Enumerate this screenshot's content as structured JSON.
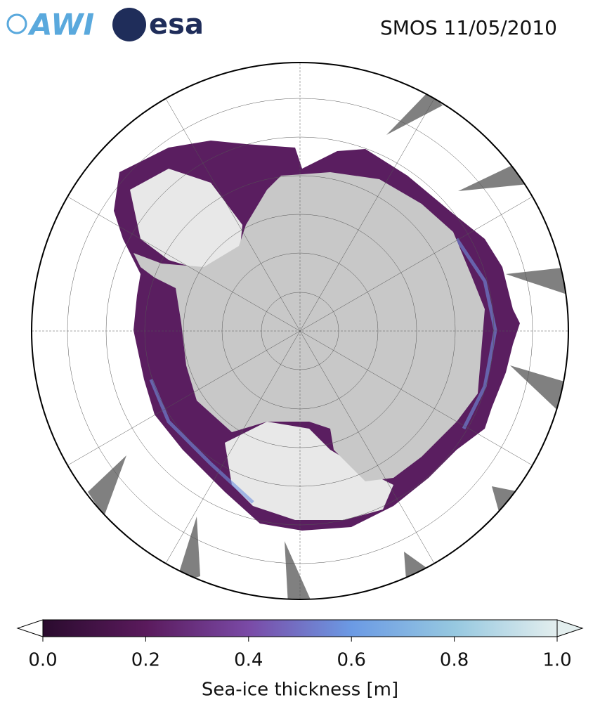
{
  "header": {
    "logos": [
      "AWI",
      "esa"
    ],
    "title": "SMOS 11/05/2010"
  },
  "colorbar": {
    "label": "Sea-ice thickness [m]",
    "range": [
      0,
      1
    ],
    "ticks": [
      {
        "value": 0,
        "label": "0.0"
      },
      {
        "value": 0.2,
        "label": "0.2"
      },
      {
        "value": 0.4,
        "label": "0.4"
      },
      {
        "value": 0.6,
        "label": "0.6"
      },
      {
        "value": 0.8,
        "label": "0.8"
      },
      {
        "value": 1,
        "label": "1.0"
      }
    ]
  }
}
